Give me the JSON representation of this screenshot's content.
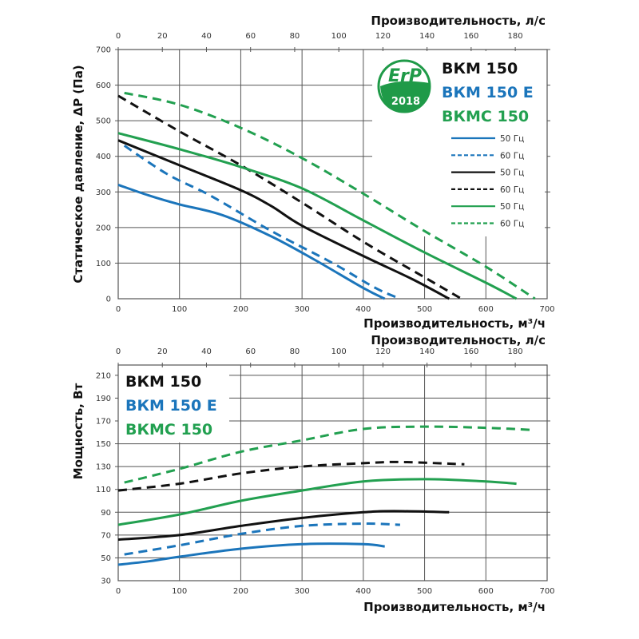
{
  "colors": {
    "vkm150": "#111111",
    "vkm150e": "#1b75bb",
    "vkmc150": "#22a050",
    "grid": "#555555",
    "erp": "#1f9a48"
  },
  "chart_data": [
    {
      "id": "pressure",
      "type": "line",
      "title": "",
      "xlabel": "Производительность, м³/ч",
      "x2label": "Производительность, л/с",
      "ylabel": "Статическое давление, ΔP (Па)",
      "xlim": [
        0,
        700
      ],
      "ylim": [
        0,
        700
      ],
      "x_ticks": [
        0,
        100,
        200,
        300,
        400,
        500,
        600,
        700
      ],
      "x2_ticks": [
        0,
        20,
        40,
        60,
        80,
        100,
        120,
        140,
        160,
        180
      ],
      "y_ticks": [
        0,
        100,
        200,
        300,
        400,
        500,
        600,
        700
      ],
      "grid": true,
      "brand_labels": [
        "ВКМ 150",
        "ВКМ 150 Е",
        "ВКМС 150"
      ],
      "badge": {
        "top": "ErP",
        "bottom": "2018"
      },
      "legend_position": "top-right",
      "legend": [
        {
          "label": "50 Гц",
          "series": "vkm150e",
          "dashed": false
        },
        {
          "label": "60 Гц",
          "series": "vkm150e",
          "dashed": true
        },
        {
          "label": "50 Гц",
          "series": "vkm150",
          "dashed": false
        },
        {
          "label": "60 Гц",
          "series": "vkm150",
          "dashed": true
        },
        {
          "label": "50 Гц",
          "series": "vkmc150",
          "dashed": false
        },
        {
          "label": "60 Гц",
          "series": "vkmc150",
          "dashed": true
        }
      ],
      "series": [
        {
          "name": "ВКМ 150 Е 50 Гц",
          "model": "vkm150e",
          "dashed": false,
          "x": [
            0,
            50,
            100,
            170,
            250,
            320,
            400,
            435
          ],
          "y": [
            320,
            290,
            265,
            235,
            175,
            110,
            30,
            0
          ]
        },
        {
          "name": "ВКМ 150 Е 60 Гц",
          "model": "vkm150e",
          "dashed": true,
          "x": [
            10,
            80,
            150,
            250,
            350,
            420,
            460
          ],
          "y": [
            430,
            350,
            290,
            190,
            100,
            30,
            0
          ]
        },
        {
          "name": "ВКМ 150 50 Гц",
          "model": "vkm150",
          "dashed": false,
          "x": [
            0,
            100,
            200,
            250,
            300,
            400,
            480,
            540
          ],
          "y": [
            445,
            375,
            305,
            260,
            205,
            120,
            55,
            0
          ]
        },
        {
          "name": "ВКМ 150 60 Гц",
          "model": "vkm150",
          "dashed": true,
          "x": [
            0,
            100,
            200,
            300,
            400,
            500,
            560
          ],
          "y": [
            570,
            470,
            375,
            270,
            160,
            60,
            0
          ]
        },
        {
          "name": "ВКМС 150 50 Гц",
          "model": "vkmc150",
          "dashed": false,
          "x": [
            0,
            100,
            200,
            300,
            400,
            500,
            600,
            650
          ],
          "y": [
            465,
            420,
            370,
            310,
            220,
            130,
            45,
            0
          ]
        },
        {
          "name": "ВКМС 150 60 Гц",
          "model": "vkmc150",
          "dashed": true,
          "x": [
            10,
            100,
            200,
            300,
            400,
            500,
            600,
            680
          ],
          "y": [
            578,
            545,
            480,
            395,
            295,
            190,
            90,
            0
          ]
        }
      ]
    },
    {
      "id": "power",
      "type": "line",
      "title": "",
      "xlabel": "Производительность, м³/ч",
      "x2label": "Производительность, л/с",
      "ylabel": "Мощность, Вт",
      "xlim": [
        0,
        700
      ],
      "ylim": [
        30,
        219
      ],
      "x_ticks": [
        0,
        100,
        200,
        300,
        400,
        500,
        600,
        700
      ],
      "x2_ticks": [
        0,
        20,
        40,
        60,
        80,
        100,
        120,
        140,
        160,
        180
      ],
      "y_ticks": [
        30,
        50,
        70,
        90,
        110,
        130,
        150,
        170,
        190,
        210
      ],
      "grid": true,
      "brand_labels": [
        "ВКМ 150",
        "ВКМ 150 Е",
        "ВКМС 150"
      ],
      "legend_position": "top-left",
      "series": [
        {
          "name": "ВКМ 150 Е 50 Гц",
          "model": "vkm150e",
          "dashed": false,
          "x": [
            0,
            50,
            100,
            200,
            300,
            400,
            435
          ],
          "y": [
            44,
            47,
            51,
            58,
            62,
            62,
            60
          ]
        },
        {
          "name": "ВКМ 150 Е 60 Гц",
          "model": "vkm150e",
          "dashed": true,
          "x": [
            10,
            100,
            200,
            300,
            400,
            460
          ],
          "y": [
            53,
            61,
            71,
            78,
            80,
            79
          ]
        },
        {
          "name": "ВКМ 150 50 Гц",
          "model": "vkm150",
          "dashed": false,
          "x": [
            0,
            100,
            200,
            300,
            400,
            450,
            540
          ],
          "y": [
            66,
            70,
            78,
            85,
            90,
            91,
            90
          ]
        },
        {
          "name": "ВКМ 150 60 Гц",
          "model": "vkm150",
          "dashed": true,
          "x": [
            0,
            100,
            200,
            300,
            400,
            460,
            565
          ],
          "y": [
            109,
            115,
            124,
            130,
            133,
            134,
            132
          ]
        },
        {
          "name": "ВКМС 150 50 Гц",
          "model": "vkmc150",
          "dashed": false,
          "x": [
            0,
            100,
            200,
            300,
            400,
            500,
            600,
            650
          ],
          "y": [
            79,
            88,
            100,
            109,
            117,
            119,
            117,
            115
          ]
        },
        {
          "name": "ВКМС 150 60 Гц",
          "model": "vkmc150",
          "dashed": true,
          "x": [
            10,
            100,
            200,
            300,
            400,
            500,
            600,
            680
          ],
          "y": [
            116,
            128,
            143,
            153,
            163,
            165,
            164,
            162
          ]
        }
      ]
    }
  ]
}
